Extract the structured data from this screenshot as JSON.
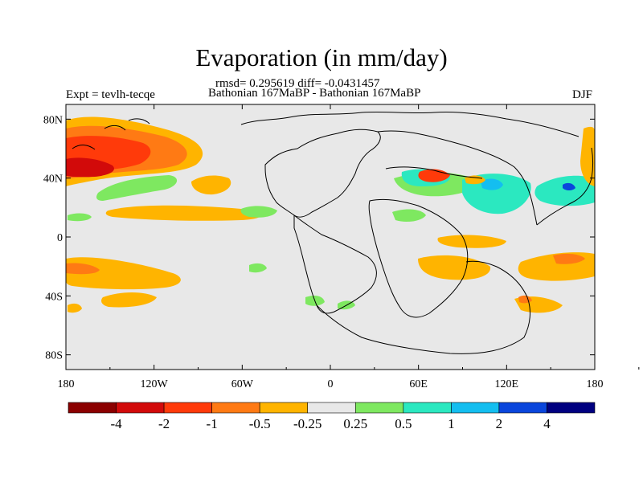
{
  "title": "Evaporation (in mm/day)",
  "stats": "rmsd= 0.295619 diff= -0.0431457",
  "experiment": "Expt = tevlh-tecqe",
  "comparison": "Bathonian 167MaBP - Bathonian 167MaBP",
  "season": "DJF",
  "axes": {
    "x_ticks": [
      "180",
      "120W",
      "60W",
      "0",
      "60E",
      "120E",
      "180"
    ],
    "y_ticks": [
      "80N",
      "40N",
      "0",
      "40S",
      "80S"
    ]
  },
  "colorbar": {
    "labels": [
      "-4",
      "-2",
      "-1",
      "-0.5",
      "-0.25",
      "0.25",
      "0.5",
      "1",
      "2",
      "4"
    ],
    "colors": [
      "#8b0000",
      "#d20a0a",
      "#ff3a0a",
      "#ff7a14",
      "#ffb400",
      "#e8e8e8",
      "#7ee860",
      "#2be8c0",
      "#14bef0",
      "#0a46dc",
      "#000080"
    ]
  },
  "colors": {
    "land_background": "#e8e8e8",
    "coast": "#000000"
  }
}
